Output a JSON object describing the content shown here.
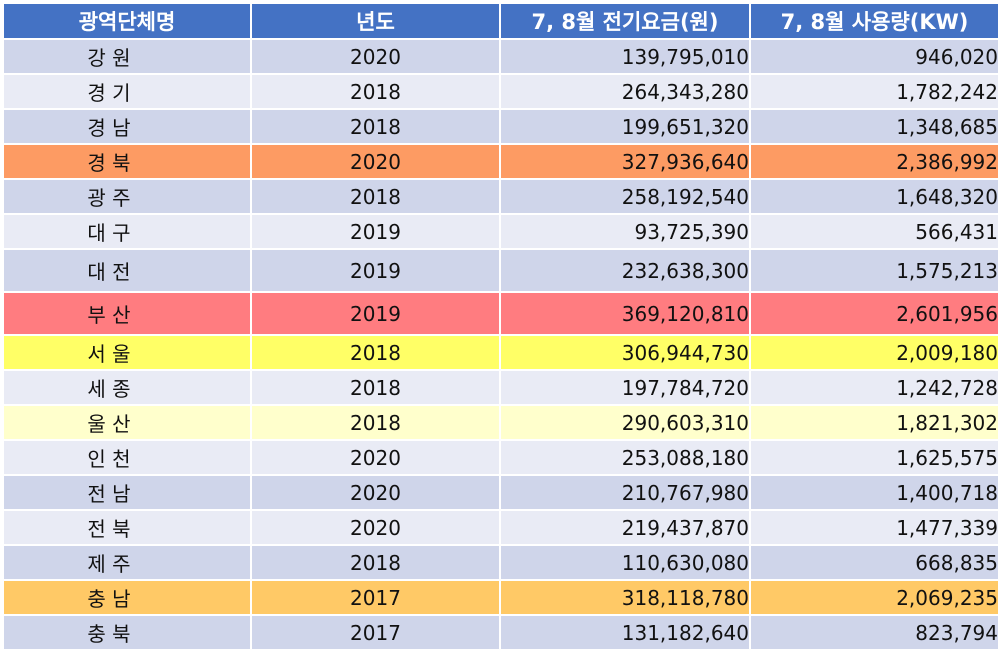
{
  "colors": {
    "header_bg": "#4472c4",
    "header_text": "#ffffff",
    "row_even": "#cfd5ea",
    "row_odd": "#e9ebf5",
    "highlight_orange": "#fd9b63",
    "highlight_red": "#ff7c80",
    "highlight_yellow": "#ffff66",
    "highlight_light_yellow": "#ffffcc",
    "highlight_gold": "#ffc966"
  },
  "table": {
    "headers": [
      "광역단체명",
      "년도",
      "7, 8월 전기요금(원)",
      "7, 8월 사용량(KW)"
    ],
    "rows": [
      {
        "region": "강 원",
        "year": "2020",
        "cost": "139,795,010",
        "usage": "946,020",
        "bg": "#cfd5ea"
      },
      {
        "region": "경 기",
        "year": "2018",
        "cost": "264,343,280",
        "usage": "1,782,242",
        "bg": "#e9ebf5"
      },
      {
        "region": "경 남",
        "year": "2018",
        "cost": "199,651,320",
        "usage": "1,348,685",
        "bg": "#cfd5ea"
      },
      {
        "region": "경 북",
        "year": "2020",
        "cost": "327,936,640",
        "usage": "2,386,992",
        "bg": "#fd9b63"
      },
      {
        "region": "광 주",
        "year": "2018",
        "cost": "258,192,540",
        "usage": "1,648,320",
        "bg": "#cfd5ea"
      },
      {
        "region": "대 구",
        "year": "2019",
        "cost": "93,725,390",
        "usage": "566,431",
        "bg": "#e9ebf5"
      },
      {
        "region": "대 전",
        "year": "2019",
        "cost": "232,638,300",
        "usage": "1,575,213",
        "bg": "#cfd5ea"
      },
      {
        "region": "부 산",
        "year": "2019",
        "cost": "369,120,810",
        "usage": "2,601,956",
        "bg": "#ff7c80"
      },
      {
        "region": "서 울",
        "year": "2018",
        "cost": "306,944,730",
        "usage": "2,009,180",
        "bg": "#ffff66"
      },
      {
        "region": "세 종",
        "year": "2018",
        "cost": "197,784,720",
        "usage": "1,242,728",
        "bg": "#e9ebf5"
      },
      {
        "region": "울 산",
        "year": "2018",
        "cost": "290,603,310",
        "usage": "1,821,302",
        "bg": "#ffffcc"
      },
      {
        "region": "인 천",
        "year": "2020",
        "cost": "253,088,180",
        "usage": "1,625,575",
        "bg": "#e9ebf5"
      },
      {
        "region": "전 남",
        "year": "2020",
        "cost": "210,767,980",
        "usage": "1,400,718",
        "bg": "#cfd5ea"
      },
      {
        "region": "전 북",
        "year": "2020",
        "cost": "219,437,870",
        "usage": "1,477,339",
        "bg": "#e9ebf5"
      },
      {
        "region": "제 주",
        "year": "2018",
        "cost": "110,630,080",
        "usage": "668,835",
        "bg": "#cfd5ea"
      },
      {
        "region": "충 남",
        "year": "2017",
        "cost": "318,118,780",
        "usage": "2,069,235",
        "bg": "#ffc966"
      },
      {
        "region": "충 북",
        "year": "2017",
        "cost": "131,182,640",
        "usage": "823,794",
        "bg": "#cfd5ea"
      }
    ]
  }
}
